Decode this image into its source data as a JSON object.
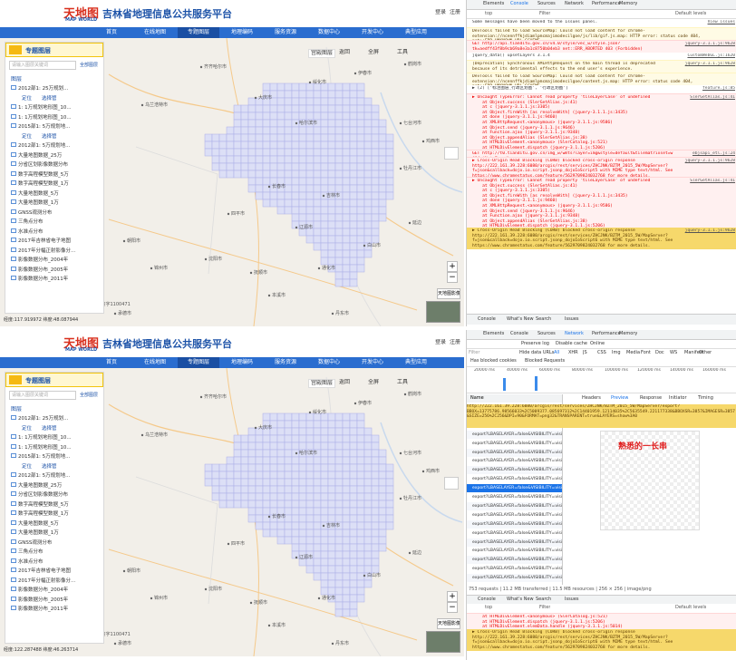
{
  "screens": [
    {
      "app": {
        "logo": "天地图",
        "logo_sub": "MAP WORLD",
        "title": "吉林省地理信息公共服务平台",
        "header_links": [
          "登录",
          "注册"
        ],
        "nav": [
          "首页",
          "在线地图",
          "专题图层",
          "地理编码",
          "服务资源",
          "数据中心",
          "开发中心",
          "典型应用"
        ],
        "panel_title": "专题图层",
        "search_placeholder": "请输入图层关键词",
        "search_button": "全部图层",
        "group": "图层",
        "layers": [
          {
            "name": "2012部1: 25万规划...",
            "actions": [
              "定位",
              "选择管"
            ]
          },
          {
            "name": "1: 1万规划地形图_10..."
          },
          {
            "name": "1: 1万规划地形图_10..."
          },
          {
            "name": "2015部1: 5万规划地...",
            "actions": [
              "定位",
              "选择管"
            ]
          },
          {
            "name": "2012部1: 5万规划地..."
          },
          {
            "name": "大量地图数据_25万"
          },
          {
            "name": "分省区划影像数据分布"
          },
          {
            "name": "数字高程模型数据_5万"
          },
          {
            "name": "数字高程模型数据_1万"
          },
          {
            "name": "大量地图数据_5万"
          },
          {
            "name": "大量地图数据_1万"
          },
          {
            "name": "GNSS观测分布"
          },
          {
            "name": "三角点分布"
          },
          {
            "name": "水准点分布"
          },
          {
            "name": "2017年吉林省电子地图"
          },
          {
            "name": "2017年分幅正射影像分..."
          },
          {
            "name": "影像数据分布_2004年"
          },
          {
            "name": "影像数据分布_2005年"
          },
          {
            "name": "影像数据分布_2011年"
          }
        ],
        "map_tools": [
          "宫殿图层",
          "返回",
          "全屏",
          "工具"
        ],
        "places": [
          "齐齐哈尔市",
          "大庆市",
          "绥化市",
          "哈尔滨市",
          "伊春市",
          "鹤岗市",
          "七台河市",
          "鸡西市",
          "牡丹江市",
          "吉林市",
          "长春市",
          "四平市",
          "辽源市",
          "通化市",
          "白山市",
          "延边",
          "沈阳市",
          "抚顺市",
          "本溪市",
          "丹东市",
          "锦州市",
          "朝阳市",
          "承德市",
          "乌兰浩特市"
        ],
        "basemap": "天地图影像",
        "scale": "100 公里",
        "copyright": "审图号: GS(2017)508号 - 甲测资字1100471",
        "status": "经度:117.919972 纬度:48.087944"
      },
      "devtools": {
        "tabs": [
          "Elements",
          "Console",
          "Sources",
          "Network",
          "Performance",
          "Memory"
        ],
        "toolbar": [
          "top",
          "Filter",
          "Default levels"
        ],
        "messages": [
          {
            "level": "info",
            "text": "Some messages have been moved to the Issues panel.",
            "source": "View issues"
          },
          {
            "level": "warn",
            "text": "DevTools failed to load SourceMap: Could not load content for chrome-extension://ncennffkjdiamlpmcmajimodecilgoe/js/lib/gif.js.map: HTTP error: status code 404, net::ERR_UNKNOWN_URL_SCHEME"
          },
          {
            "level": "error",
            "text": "GET http://api.tianditu.gov.cn/v4.0/style/vec_w/style.json?tk=aedff43f8b9cb69a8e3a1c8750b04eb3 net::ERR_ABORTED 403 (Forbidden)",
            "source": "jquery-3.1.1.js:9628"
          },
          {
            "level": "info",
            "text": "jquery_data() upsetLayers 3.1.4",
            "source": "CustomWebGL.js:1620"
          },
          {
            "level": "warn",
            "text": "[Deprecation] Synchronous XMLHttpRequest on the main thread is deprecated because of its detrimental effects to the end user's experience.",
            "source": "jquery-3.1.1.js:9628"
          },
          {
            "level": "warn",
            "text": "DevTools failed to load SourceMap: Could not load content for chrome-extension://ncennffkjdiamlpmcmajimodecilgoe/content.js.map: HTTP error: status code 404, net::ERR_UNKNOWN_URL_SCHEME"
          },
          {
            "level": "info",
            "text": "▶ (2) ['标注图层_行政区划图', '行政区划图']",
            "source": "feature.js:85"
          },
          {
            "level": "error",
            "text": "▶ Uncaught TypeError: Cannot read property 'tileLayerCase' of undefined\n    at Object.success (SlerGetAlias.js:41)\n    at c (jquery-3.1.1.js:3305)\n    at Object.fireWith [as resolveWith] (jquery-3.1.1.js:3435)\n    at done (jquery-3.1.1.js:9460)\n    at XMLHttpRequest.<anonymous> (jquery-3.1.1.js:9586)\n    at Object.send (jquery-3.1.1.js:9646)\n    at Function.ajax (jquery-3.1.1.js:9348)\n    at Object.appendAlias (SlerGetAlias.js:38)\n    at HTMLDivElement.<anonymous> (SlerCatalog.js:521)\n    at HTMLDivElement.dispatch (jquery-3.1.1.js:5206)\n    at HTMLDivElement.elemData.handle (jquery-3.1.1.js:5014)",
            "source": "SlerGetAlias.js:41"
          },
          {
            "level": "error",
            "text": "GET http://t0.tianditu.gov.cn/img_w/wmts?layer=img&style=default&tilematrixset=w 404 (Not Found)",
            "source": "ebjsapi_etl.js:24"
          },
          {
            "level": "error",
            "text": "▶ Cross-Origin Read Blocking (CORB) blocked cross-origin response http://222.161.39.228:6080/arcgis/rest/services/ZHCJNK/BZTM_2015_5W/MapServer?f=json&callback=dojo.io.script.jsonp_dojoIoScript5 with MIME type text/html. See https://www.chromestatus.com/feature/5629709824032768 for more details.",
            "source": "jquery-3.1.1.js:9628"
          },
          {
            "level": "error",
            "text": "▶ Uncaught TypeError: Cannot read property 'tileLayerCase' of undefined\n    at Object.success (SlerGetAlias.js:41)\n    at c (jquery-3.1.1.js:3305)\n    at Object.fireWith [as resolveWith] (jquery-3.1.1.js:3435)\n    at done (jquery-3.1.1.js:9460)\n    at XMLHttpRequest.<anonymous> (jquery-3.1.1.js:9586)\n    at Object.send (jquery-3.1.1.js:9646)\n    at Function.ajax (jquery-3.1.1.js:9348)\n    at Object.appendAlias (SlerGetAlias.js:38)\n    at HTMLDivElement.dispatch (jquery-3.1.1.js:5206)\n    at HTMLDivElement.elemData.handle (jquery-3.1.1.js:5014)",
            "source": "SlerGetAlias.js:41"
          },
          {
            "level": "highlight",
            "text": "▶ Cross-Origin Read Blocking (CORB) blocked cross-origin response http://222.161.39.228:6080/arcgis/rest/services/ZHCJNK/BZTM_2015_5W/MapServer?f=json&callback=dojo.io.script.jsonp_dojoIoScript6 with MIME type text/html. See https://www.chromestatus.com/feature/5629709824032768 for more details.",
            "source": "jquery-3.1.1.js:9628"
          }
        ],
        "drawer_tabs": [
          "Console",
          "What's New",
          "Search",
          "Issues"
        ]
      }
    },
    {
      "app": {
        "logo": "天地图",
        "logo_sub": "MAP WORLD",
        "title": "吉林省地理信息公共服务平台",
        "header_links": [
          "登录",
          "注册"
        ],
        "nav": [
          "首页",
          "在线地图",
          "专题图层",
          "地理编码",
          "服务资源",
          "数据中心",
          "开发中心",
          "典型应用"
        ],
        "panel_title": "专题图层",
        "search_placeholder": "请输入图层关键词",
        "search_button": "全部图层",
        "group": "图层",
        "layers": [
          {
            "name": "2012部1: 25万规划...",
            "actions": [
              "定位",
              "选择管"
            ]
          },
          {
            "name": "1: 1万规划地形图_10..."
          },
          {
            "name": "1: 1万规划地形图_10..."
          },
          {
            "name": "2015部1: 5万规划地...",
            "actions": [
              "定位",
              "选择管"
            ]
          },
          {
            "name": "2012部1: 5万规划地..."
          },
          {
            "name": "大量地图数据_25万"
          },
          {
            "name": "分省区划影像数据分布"
          },
          {
            "name": "数字高程模型数据_5万"
          },
          {
            "name": "数字高程模型数据_1万"
          },
          {
            "name": "大量地图数据_5万"
          },
          {
            "name": "大量地图数据_1万"
          },
          {
            "name": "GNSS观测分布"
          },
          {
            "name": "三角点分布"
          },
          {
            "name": "水准点分布"
          },
          {
            "name": "2017年吉林省电子地图"
          },
          {
            "name": "2017年分幅正射影像分..."
          },
          {
            "name": "影像数据分布_2004年"
          },
          {
            "name": "影像数据分布_2005年"
          },
          {
            "name": "影像数据分布_2011年"
          }
        ],
        "map_tools": [
          "宫殿图层",
          "返回",
          "全屏",
          "工具"
        ],
        "places": [
          "齐齐哈尔市",
          "大庆市",
          "绥化市",
          "哈尔滨市",
          "伊春市",
          "鹤岗市",
          "七台河市",
          "鸡西市",
          "牡丹江市",
          "吉林市",
          "长春市",
          "四平市",
          "辽源市",
          "通化市",
          "白山市",
          "延边",
          "沈阳市",
          "抚顺市",
          "本溪市",
          "丹东市",
          "锦州市",
          "朝阳市",
          "承德市",
          "乌兰浩特市"
        ],
        "basemap": "天地图影像",
        "scale": "100 公里",
        "copyright": "审图号: GS(2017)508号 - 甲测资字1100471",
        "status": "经度:122.287488 纬度:46.263714"
      },
      "devtools": {
        "tabs": [
          "Elements",
          "Console",
          "Sources",
          "Network",
          "Performance",
          "Memory"
        ],
        "toolbar": [
          "Preserve log",
          "Disable cache",
          "Online"
        ],
        "filter": "Filter",
        "filter_options": [
          "Hide data URLs",
          "All",
          "XHR",
          "JS",
          "CSS",
          "Img",
          "Media",
          "Font",
          "Doc",
          "WS",
          "Manifest",
          "Other"
        ],
        "checks": [
          "Has blocked cookies",
          "Blocked Requests"
        ],
        "timeline": [
          "20000 ms",
          "40000 ms",
          "60000 ms",
          "80000 ms",
          "100000 ms",
          "120000 ms",
          "140000 ms",
          "160000 ms"
        ],
        "list_header": "Name",
        "requests": [
          "export?LBASELAYER=false&VISIBILITY=visi...",
          "export?LBASELAYER=false&VISIBILITY=visi...",
          "export?LBASELAYER=false&VISIBILITY=visi...",
          "export?LBASELAYER=false&VISIBILITY=visi...",
          "export?LBASELAYER=false&VISIBILITY=visi...",
          "export?LBASELAYER=false&VISIBILITY=visi...",
          "export?LBASELAYER=false&VISIBILITY=visi...",
          "export?LBASELAYER=false&VISIBILITY=visi...",
          "export?LBASELAYER=false&VISIBILITY=visi...",
          "export?LBASELAYER=false&VISIBILITY=visi...",
          "export?LBASELAYER=false&VISIBILITY=visi...",
          "export?LBASELAYER=false&VISIBILITY=visi...",
          "export?LBASELAYER=false&VISIBILITY=visi...",
          "export?LBASELAYER=false&VISIBILITY=visi...",
          "export?LBASELAYER=false&VISIBILITY=visi...",
          "export?LBASELAYER=false&VISIBILITY=visi...",
          "export?LBASELAYER=false&VISIBILITY=visi...",
          "export?LBASELAYER=false&VISIBILITY=visi...",
          "export?LBASELAYER=false&VISIBILITY=visi...",
          "export?LBASELAYER=false&VISIBILITY=visi..."
        ],
        "selected_request": 9,
        "request_url": "http://222.161.39.228:6080/arcgis/rest/services/ZHCJNK/BZTM_2015_5W/MapServer/export?BBOX=13775786.98566033%2C5009377.085697312%2C14401959.12114035%2C5635549.221177338&BBOXSR=3857&IMAGESR=3857&SIZE=256%2C256&DPI=90&FORMAT=png32&TRANSPARENT=true&LAYERS=show%3A0",
        "preview_tabs": [
          "Headers",
          "Preview",
          "Response",
          "Initiator",
          "Timing"
        ],
        "preview_note": "熟悉的一长串",
        "summary": "753 requests | 11.2 MB transferred | 11.5 MB resources | 256 × 256 | image/png",
        "drawer_tabs": [
          "Console",
          "What's New",
          "Search",
          "Issues"
        ],
        "drawer_toolbar": [
          "top",
          "Filter",
          "Default levels"
        ],
        "drawer_lines": [
          {
            "level": "error",
            "text": "    at HTMLDivElement.<anonymous> (SlerCatalog.js:521)\n    at HTMLDivElement.dispatch (jquery-3.1.1.js:5206)\n    at HTMLDivElement.elemData.handle (jquery-3.1.1.js:5014)"
          },
          {
            "level": "highlight",
            "text": "▶ Cross-Origin Read Blocking (CORB) blocked cross-origin response http://222.161.39.228:6080/arcgis/rest/services/ZHCJNK/BZTM_2015_5W/MapServer?f=json&callback=dojo.io.script.jsonp_dojoIoScript6 with MIME type text/html. See https://www.chromestatus.com/feature/5629709824032768 for more details."
          }
        ]
      }
    }
  ]
}
